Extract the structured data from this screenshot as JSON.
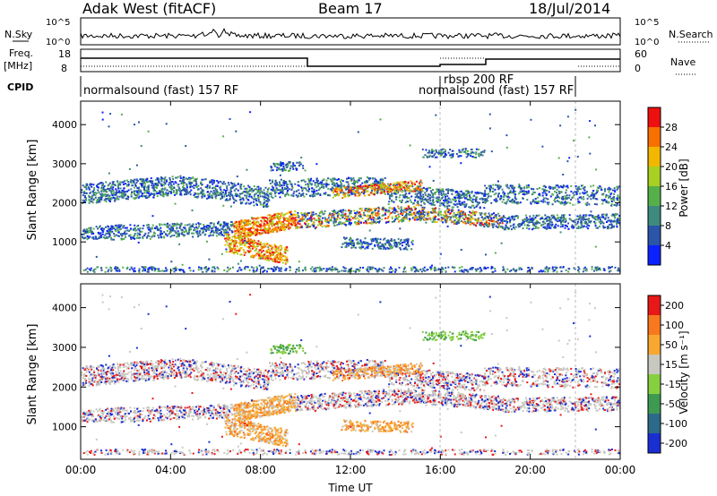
{
  "header": {
    "title": "Adak West (fitACF)",
    "beam": "Beam 17",
    "date": "18/Jul/2014"
  },
  "top_panels": {
    "nsky_label": "N.Sky",
    "nsearch_label": "N.Search",
    "nsky_ticks": [
      "10^5",
      "10^0"
    ],
    "nsky_ticks_right": [
      "10^5",
      "10^0"
    ],
    "freq_label": "Freq.",
    "freq_unit": "[MHz]",
    "freq_ticks": [
      "18",
      "8"
    ],
    "nave_label": "Nave",
    "nave_ticks": [
      "60",
      "0"
    ],
    "cpid_label": "CPID",
    "cpid_segments": [
      {
        "text": "normalsound (fast) 157 RF"
      },
      {
        "text": "rbsp 200 RF"
      },
      {
        "text": "normalsound (fast) 157 RF"
      }
    ]
  },
  "chart_data": [
    {
      "type": "heatmap",
      "name": "power-panel",
      "title": "",
      "xlabel": "",
      "ylabel": "Slant Range [km]",
      "ylim": [
        180,
        4600
      ],
      "y_ticks": [
        "1000",
        "2000",
        "3000",
        "4000"
      ],
      "y_tick_values": [
        1000,
        2000,
        3000,
        4000
      ],
      "colorbar_label": "Power [dB]",
      "colorbar_ticks": [
        "4",
        "8",
        "12",
        "16",
        "20",
        "24",
        "28"
      ],
      "colorbar_colors": [
        "#0b22ff",
        "#2a55a8",
        "#3f8a7e",
        "#56b04a",
        "#a8d022",
        "#f2b800",
        "#f87000",
        "#ee1010"
      ]
    },
    {
      "type": "heatmap",
      "name": "velocity-panel",
      "title": "",
      "xlabel": "Time UT",
      "ylabel": "Slant Range [km]",
      "ylim": [
        180,
        4600
      ],
      "y_ticks": [
        "1000",
        "2000",
        "3000",
        "4000"
      ],
      "y_tick_values": [
        1000,
        2000,
        3000,
        4000
      ],
      "x_ticks": [
        "00:00",
        "04:00",
        "08:00",
        "12:00",
        "16:00",
        "20:00",
        "00:00"
      ],
      "colorbar_label": "Velocity [m s⁻¹]",
      "colorbar_ticks": [
        "200",
        "100",
        "50",
        "15",
        "-15",
        "-50",
        "-100",
        "-200"
      ],
      "colorbar_colors": [
        "#1a2fd2",
        "#2d6a8a",
        "#3e9a50",
        "#86d040",
        "#c8c8c0",
        "#f8a830",
        "#f87820",
        "#e81818"
      ]
    }
  ]
}
